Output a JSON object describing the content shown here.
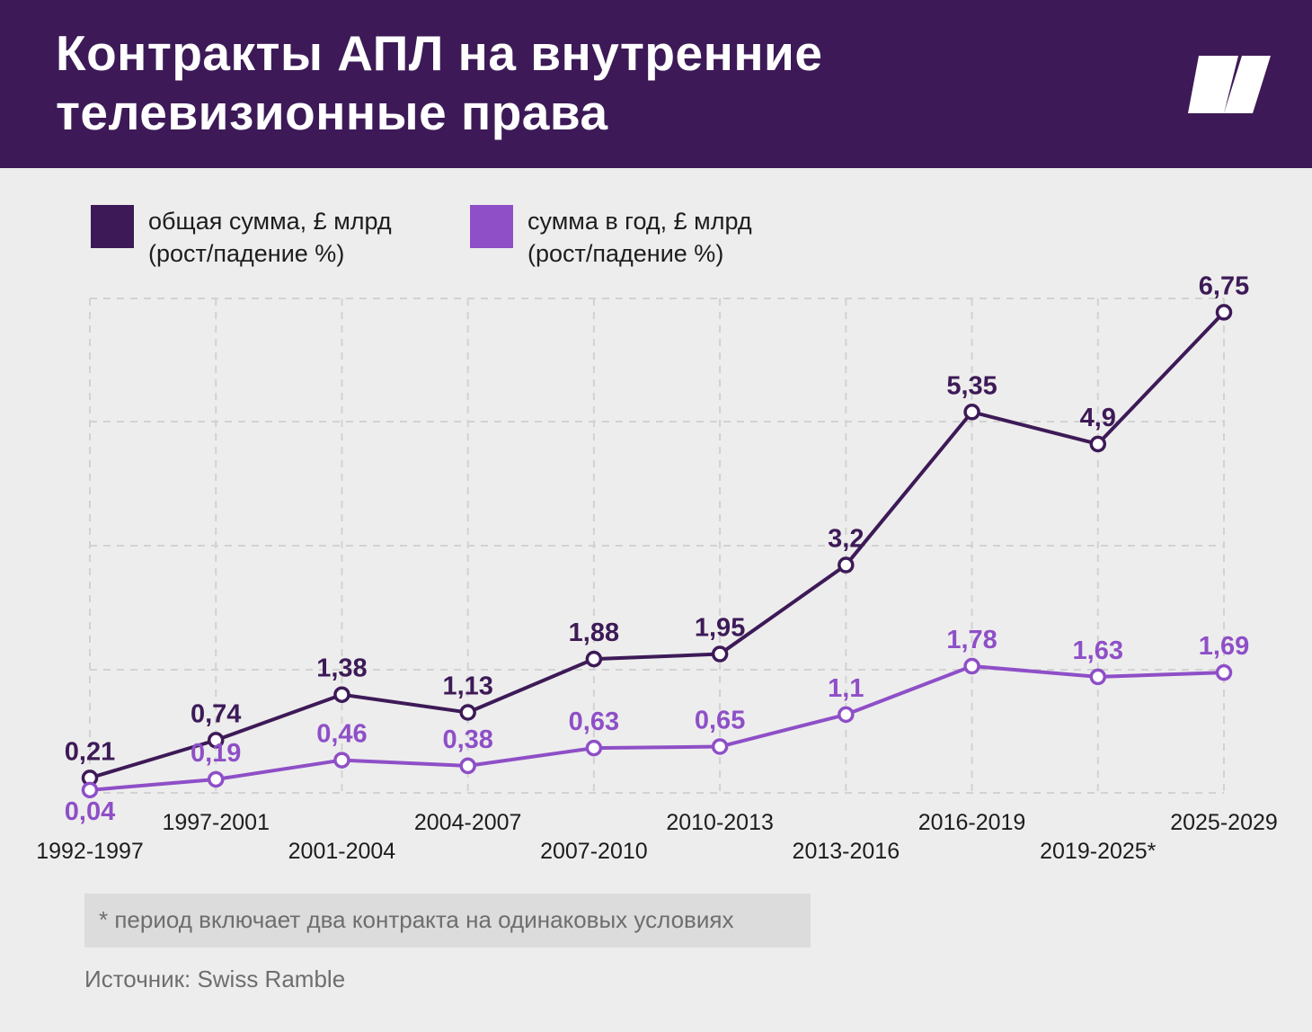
{
  "header": {
    "title_line1": "Контракты АПЛ на внутренние",
    "title_line2": "телевизионные права"
  },
  "legend": {
    "total_line1": "общая сумма, £ млрд",
    "total_line2": "(рост/падение %)",
    "annual_line1": "сумма в год, £ млрд",
    "annual_line2": "(рост/падение %)"
  },
  "colors": {
    "header_bg": "#3d1a57",
    "total": "#3d1a57",
    "annual": "#8e4fc7",
    "grid": "#d2d2d2"
  },
  "chart_data": {
    "type": "line",
    "title": "Контракты АПЛ на внутренние телевизионные права",
    "categories": [
      "1992-1997",
      "1997-2001",
      "2001-2004",
      "2004-2007",
      "2007-2010",
      "2010-2013",
      "2013-2016",
      "2016-2019",
      "2019-2025*",
      "2025-2029"
    ],
    "series": [
      {
        "name": "общая сумма, £ млрд (рост/падение %)",
        "values": [
          0.21,
          0.74,
          1.38,
          1.13,
          1.88,
          1.95,
          3.2,
          5.35,
          4.9,
          6.75
        ],
        "labels": [
          "0,21",
          "0,74",
          "1,38",
          "1,13",
          "1,88",
          "1,95",
          "3,2",
          "5,35",
          "4,9",
          "6,75"
        ]
      },
      {
        "name": "сумма в год, £ млрд (рост/падение %)",
        "values": [
          0.04,
          0.19,
          0.46,
          0.38,
          0.63,
          0.65,
          1.1,
          1.78,
          1.63,
          1.69
        ],
        "labels": [
          "0,04",
          "0,19",
          "0,46",
          "0,38",
          "0,63",
          "0,65",
          "1,1",
          "1,78",
          "1,63",
          "1,69"
        ]
      }
    ],
    "ylim": [
      -0.1,
      7.6
    ],
    "grid": true,
    "xlabel": "",
    "ylabel": ""
  },
  "footnote": "* период включает два контракта на одинаковых условиях",
  "source": "Источник: Swiss Ramble"
}
